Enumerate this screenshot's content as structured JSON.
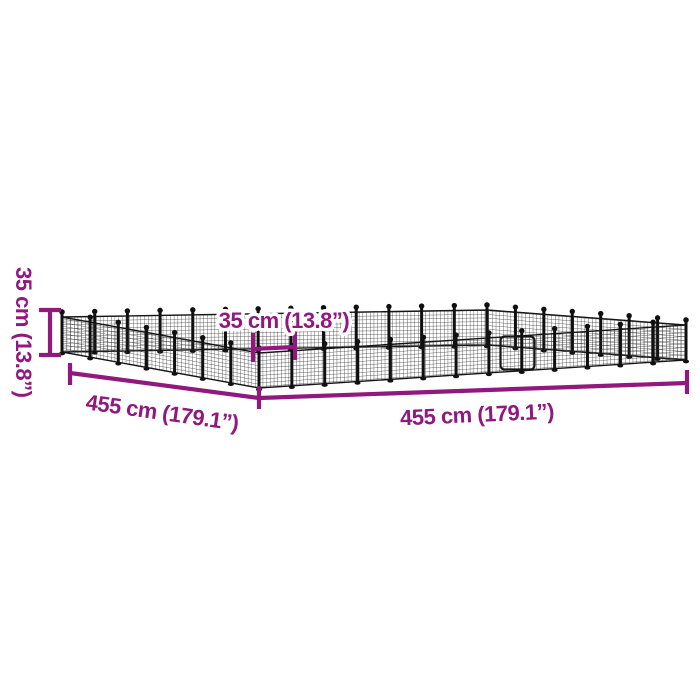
{
  "illustration": {
    "subject": "wire mesh pet playpen enclosure dimension diagram",
    "colors": {
      "accent": "#91187E",
      "mesh": "#2B2B2B",
      "post": "#101010",
      "background": "#FFFFFF"
    },
    "labels": {
      "height": "35 cm (13.8”)",
      "panel": "35 cm (13.8”)",
      "side_left": "455 cm (179.1”)",
      "side_right": "455 cm (179.1”)"
    }
  }
}
